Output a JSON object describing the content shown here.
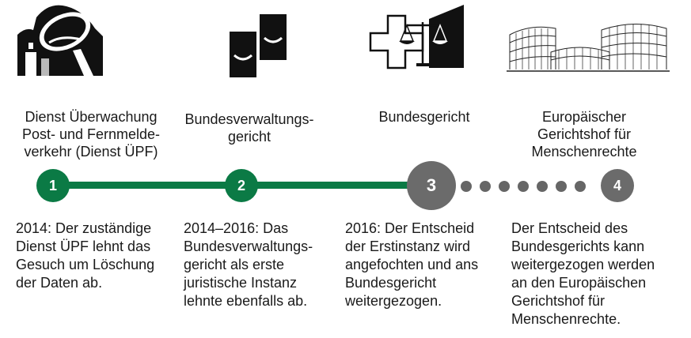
{
  "steps": [
    {
      "number": "1",
      "icon": "satellite-dish-icon",
      "title": [
        "Dienst Überwachung",
        "Post- und Fernmelde-",
        "verkehr (Dienst ÜPF)"
      ],
      "description": [
        "2014: Der zuständige",
        "Dienst ÜPF lehnt das",
        "Gesuch um Löschung",
        "der Daten ab."
      ]
    },
    {
      "number": "2",
      "icon": "court-seal-icon",
      "title": [
        "Bundesverwaltungs-",
        "gericht"
      ],
      "description": [
        "2014–2016: Das",
        "Bundesverwaltungs-",
        "gericht als erste",
        "juristische Instanz",
        "lehnte ebenfalls ab."
      ]
    },
    {
      "number": "3",
      "icon": "swiss-cross-scales-icon",
      "title": [
        "Bundesgericht"
      ],
      "description": [
        "2016: Der Entscheid",
        "der Erstinstanz wird",
        "angefochten und ans",
        "Bundesgericht",
        "weitergezogen."
      ]
    },
    {
      "number": "4",
      "icon": "european-court-building-icon",
      "title": [
        "Europäischer",
        "Gerichtshof für",
        "Menschenrechte"
      ],
      "description": [
        "Der Entscheid des",
        "Bundesgerichts kann",
        "weitergezogen werden",
        "an den Europäischen",
        "Gerichtshof für",
        "Menschenrechte."
      ]
    }
  ],
  "colors": {
    "green": "#0b7a45",
    "gray": "#6b6b6b"
  }
}
